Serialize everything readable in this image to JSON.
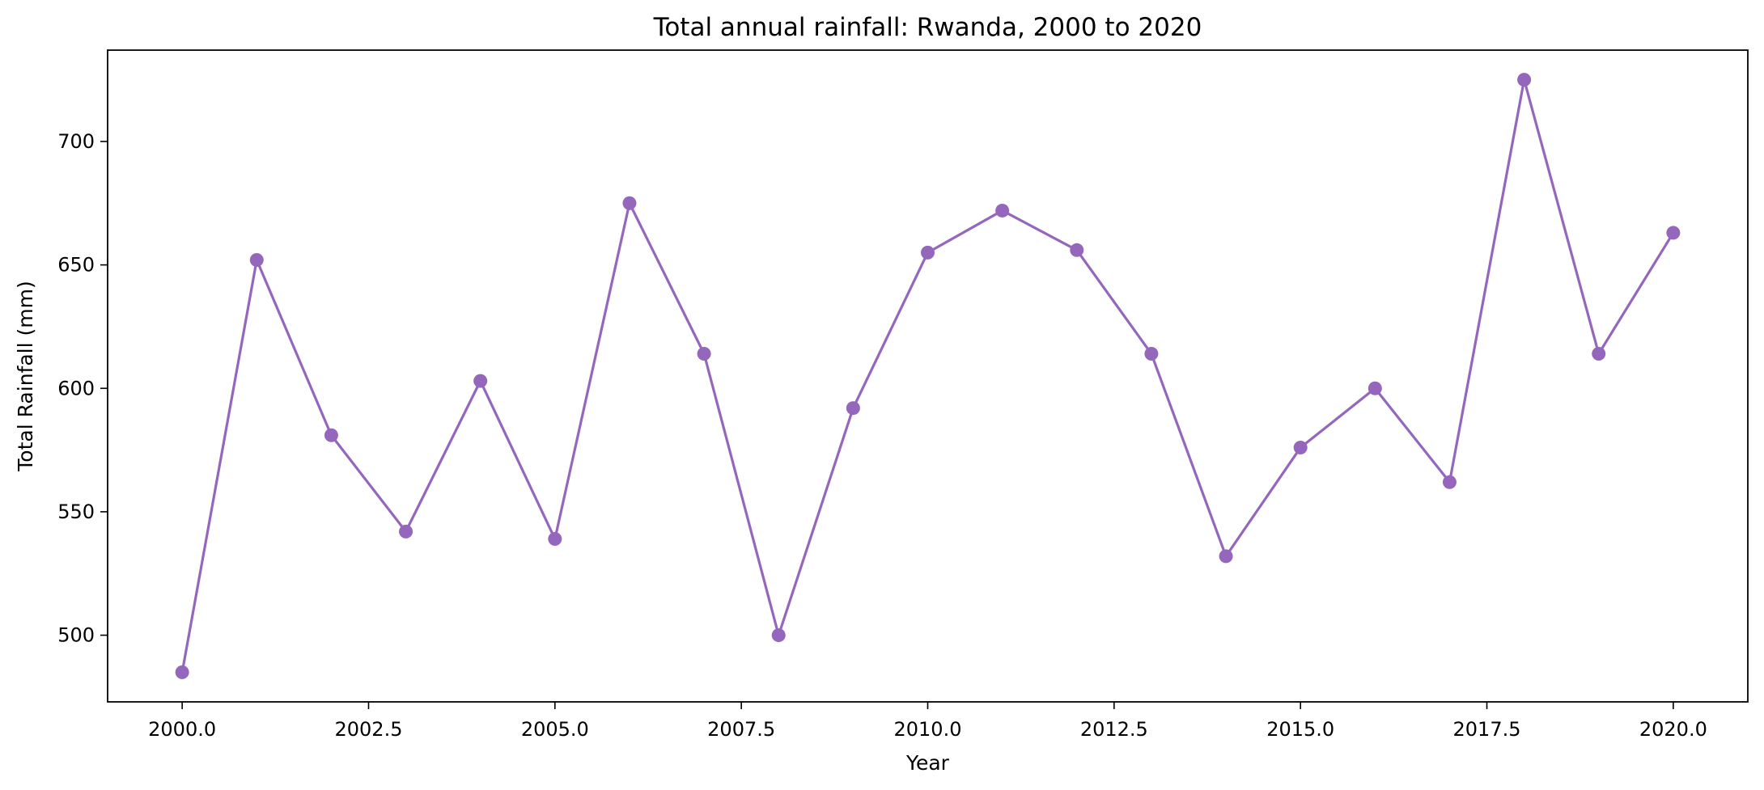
{
  "chart_data": {
    "type": "line",
    "title": "Total annual rainfall: Rwanda, 2000 to 2020",
    "xlabel": "Year",
    "ylabel": "Total Rainfall (mm)",
    "xlim": [
      1999.0,
      2021.0
    ],
    "ylim": [
      473,
      737
    ],
    "x_ticks": [
      2000.0,
      2002.5,
      2005.0,
      2007.5,
      2010.0,
      2012.5,
      2015.0,
      2017.5,
      2020.0
    ],
    "x_tick_labels": [
      "2000.0",
      "2002.5",
      "2005.0",
      "2007.5",
      "2010.0",
      "2012.5",
      "2015.0",
      "2017.5",
      "2020.0"
    ],
    "y_ticks": [
      500,
      550,
      600,
      650,
      700
    ],
    "y_tick_labels": [
      "500",
      "550",
      "600",
      "650",
      "700"
    ],
    "grid": false,
    "legend": false,
    "series": [
      {
        "color": "#9467bd",
        "marker": "circle",
        "x": [
          2000,
          2001,
          2002,
          2003,
          2004,
          2005,
          2006,
          2007,
          2008,
          2009,
          2010,
          2011,
          2012,
          2013,
          2014,
          2015,
          2016,
          2017,
          2018,
          2019,
          2020
        ],
        "values": [
          485,
          652,
          581,
          542,
          603,
          539,
          675,
          614,
          500,
          592,
          655,
          672,
          656,
          614,
          532,
          576,
          600,
          562,
          725,
          614,
          663
        ]
      }
    ]
  }
}
